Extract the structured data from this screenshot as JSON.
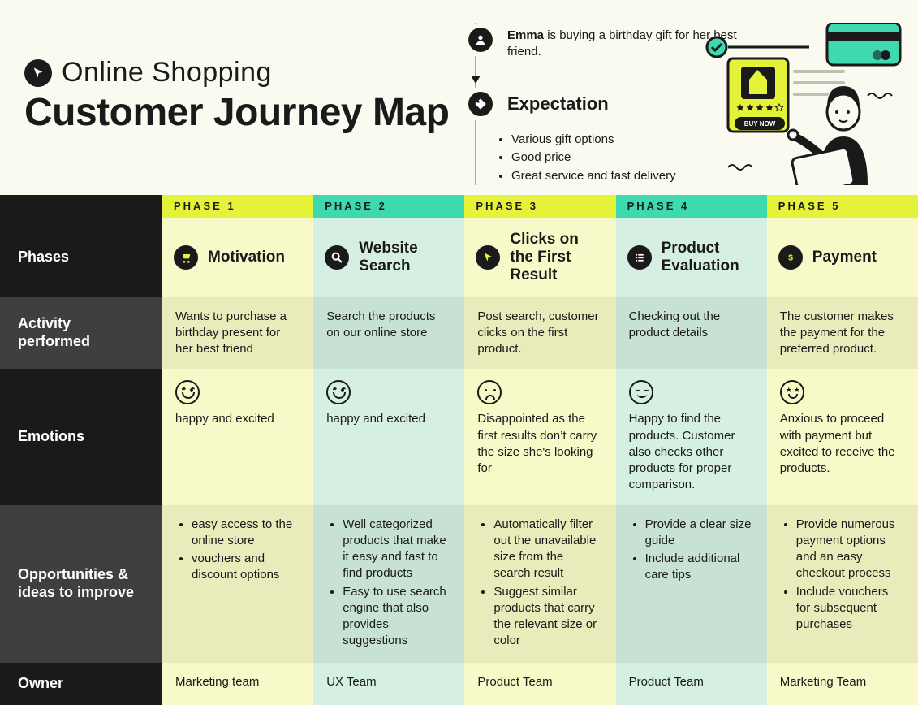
{
  "colors": {
    "page_bg": "#fafaf0",
    "black": "#1a1a1a",
    "dark_gray": "#3f3f3f",
    "yellow_tag": "#e5f23a",
    "teal_tag": "#3fd9b0",
    "light_yellow": "#f7f9c8",
    "light_teal": "#d5f0e3"
  },
  "header": {
    "title_small": "Online Shopping",
    "title_big": "Customer Journey Map",
    "persona_name": "Emma",
    "persona_text_rest": " is buying a birthday gift for her best friend.",
    "expectation_label": "Expectation",
    "expectations": [
      "Various gift options",
      "Good price",
      "Great service and fast delivery"
    ],
    "illustration": {
      "buy_now_label": "BUY NOW",
      "star_count": 4
    }
  },
  "rows": {
    "phases": "Phases",
    "activity": "Activity performed",
    "emotions": "Emotions",
    "opportunities": "Opportunities & ideas to improve",
    "owner": "Owner"
  },
  "phases": [
    {
      "tag": "PHASE 1",
      "tag_bg": "#e5f23a",
      "col_shade": "#f7f9c8",
      "title": "Motivation",
      "icon": "cart-icon",
      "activity": "Wants to purchase a birthday present for her best friend",
      "emotion_face": "happy",
      "emotion_text": "happy and excited",
      "opportunities": [
        "easy access to the online store",
        "vouchers and discount options"
      ],
      "owner": "Marketing team"
    },
    {
      "tag": "PHASE 2",
      "tag_bg": "#3fd9b0",
      "col_shade": "#d5f0e3",
      "title": "Website Search",
      "icon": "search-icon",
      "activity": "Search the products on our online store",
      "emotion_face": "happy",
      "emotion_text": "happy and excited",
      "opportunities": [
        "Well categorized products that make it easy and fast to find products",
        "Easy to use search engine that also provides suggestions"
      ],
      "owner": "UX Team"
    },
    {
      "tag": "PHASE 3",
      "tag_bg": "#e5f23a",
      "col_shade": "#f7f9c8",
      "title": "Clicks on the First Result",
      "icon": "cursor-icon",
      "activity": "Post search, customer clicks on the first product.",
      "emotion_face": "sad",
      "emotion_text": "Disappointed as the first results don’t carry the size she's looking for",
      "opportunities": [
        "Automatically filter out the unavailable size from the search result",
        "Suggest similar products that carry the relevant size or color"
      ],
      "owner": "Product Team"
    },
    {
      "tag": "PHASE 4",
      "tag_bg": "#3fd9b0",
      "col_shade": "#d5f0e3",
      "title": "Product Evaluation",
      "icon": "list-icon",
      "activity": "Checking out the product details",
      "emotion_face": "smile",
      "emotion_text": "Happy to find the products. Customer also checks other products for proper comparison.",
      "opportunities": [
        "Provide a clear size guide",
        "Include additional care tips"
      ],
      "owner": "Product Team"
    },
    {
      "tag": "PHASE 5",
      "tag_bg": "#e5f23a",
      "col_shade": "#f7f9c8",
      "title": "Payment",
      "icon": "dollar-icon",
      "activity": "The customer makes the payment for the preferred product.",
      "emotion_face": "star",
      "emotion_text": "Anxious to proceed with payment but excited to receive the products.",
      "opportunities": [
        "Provide numerous payment options and an easy checkout process",
        "Include vouchers for subsequent purchases"
      ],
      "owner": "Marketing Team"
    }
  ]
}
